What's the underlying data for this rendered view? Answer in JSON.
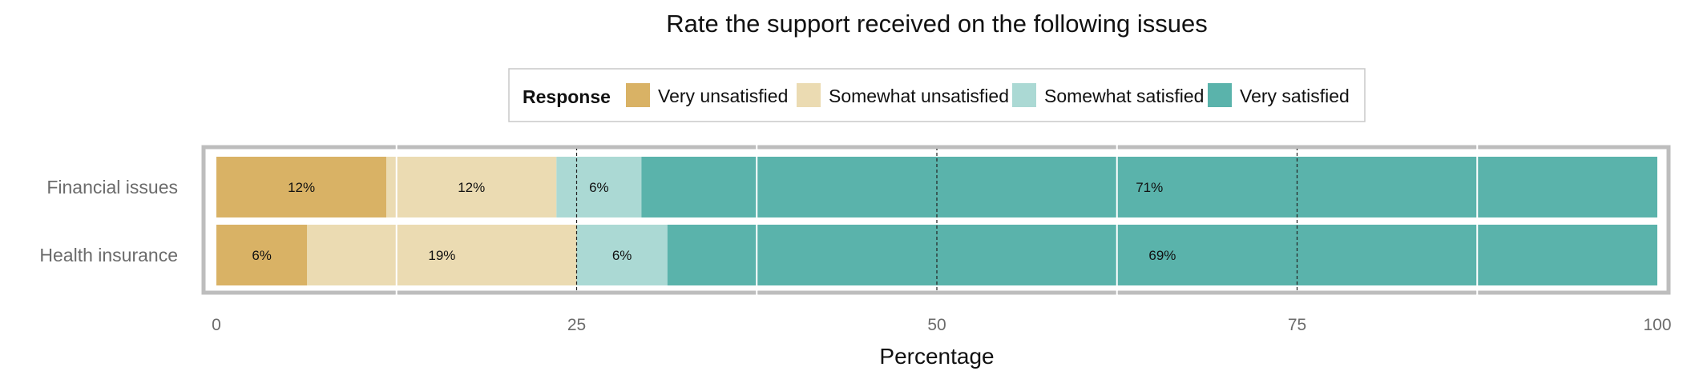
{
  "chart_data": {
    "type": "bar",
    "orientation": "horizontal",
    "stacked": true,
    "title": "Rate the support received on the following issues",
    "xlabel": "Percentage",
    "ylabel": "",
    "xlim": [
      0,
      100
    ],
    "xticks": [
      0,
      25,
      50,
      75,
      100
    ],
    "xtick_labels": [
      "0",
      "25",
      "50",
      "75",
      "100"
    ],
    "grid": true,
    "legend": {
      "title": "Response",
      "placement": "top-center"
    },
    "categories": [
      "Financial issues",
      "Health insurance"
    ],
    "series": [
      {
        "name": "Very unsatisfied",
        "color": "#D9B265",
        "values": [
          11.8,
          6.3
        ],
        "labels": [
          "12%",
          "6%"
        ]
      },
      {
        "name": "Somewhat unsatisfied",
        "color": "#EBDBB2",
        "values": [
          11.8,
          18.7
        ],
        "labels": [
          "12%",
          "19%"
        ]
      },
      {
        "name": "Somewhat satisfied",
        "color": "#ABD9D4",
        "values": [
          5.9,
          6.3
        ],
        "labels": [
          "6%",
          "6%"
        ]
      },
      {
        "name": "Very satisfied",
        "color": "#5AB3AB",
        "values": [
          70.5,
          68.7
        ],
        "labels": [
          "71%",
          "69%"
        ]
      }
    ]
  }
}
